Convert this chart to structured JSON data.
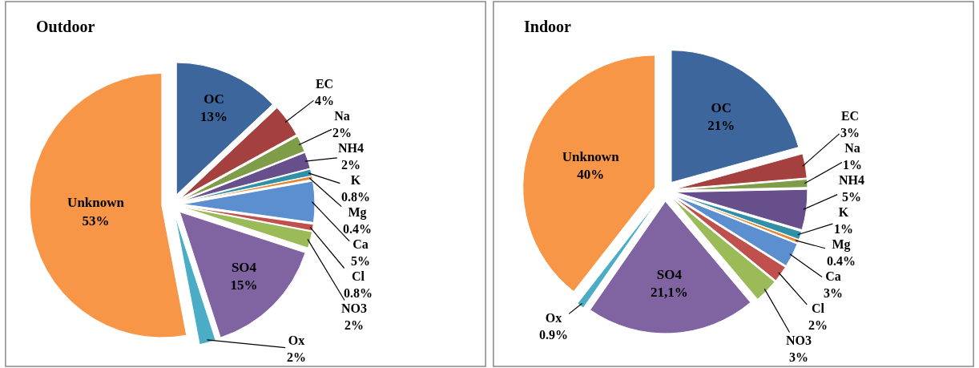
{
  "chart_data": [
    {
      "type": "pie",
      "title": "Outdoor",
      "categories": [
        "OC",
        "EC",
        "Na",
        "NH4",
        "K",
        "Mg",
        "Ca",
        "Cl",
        "NO3",
        "SO4",
        "Ox",
        "Unknown"
      ],
      "values": [
        13,
        4,
        2,
        2,
        0.8,
        0.4,
        5,
        0.8,
        2,
        15,
        2,
        53
      ],
      "value_labels": [
        "13%",
        "4%",
        "2%",
        "2%",
        "0.8%",
        "0.4%",
        "5%",
        "0.8%",
        "2%",
        "15%",
        "2%",
        "53%"
      ],
      "colors": [
        "#3d679c",
        "#a4403d",
        "#7f9c48",
        "#664f8a",
        "#3090a8",
        "#e8832f",
        "#5b8fd0",
        "#c0504d",
        "#9bbb59",
        "#8064a2",
        "#4bacc6",
        "#f79646"
      ]
    },
    {
      "type": "pie",
      "title": "Indoor",
      "categories": [
        "OC",
        "EC",
        "Na",
        "NH4",
        "K",
        "Mg",
        "Ca",
        "Cl",
        "NO3",
        "SO4",
        "Ox",
        "Unknown"
      ],
      "values": [
        21,
        3,
        1,
        5,
        1,
        0.4,
        3,
        2,
        3,
        21.1,
        0.9,
        40
      ],
      "value_labels": [
        "21%",
        "3%",
        "1%",
        "5%",
        "1%",
        "0.4%",
        "3%",
        "2%",
        "3%",
        "21,1%",
        "0.9%",
        "40%"
      ],
      "colors": [
        "#3d679c",
        "#a4403d",
        "#7f9c48",
        "#664f8a",
        "#3090a8",
        "#e8832f",
        "#5b8fd0",
        "#c0504d",
        "#9bbb59",
        "#8064a2",
        "#4bacc6",
        "#f79646"
      ]
    }
  ]
}
